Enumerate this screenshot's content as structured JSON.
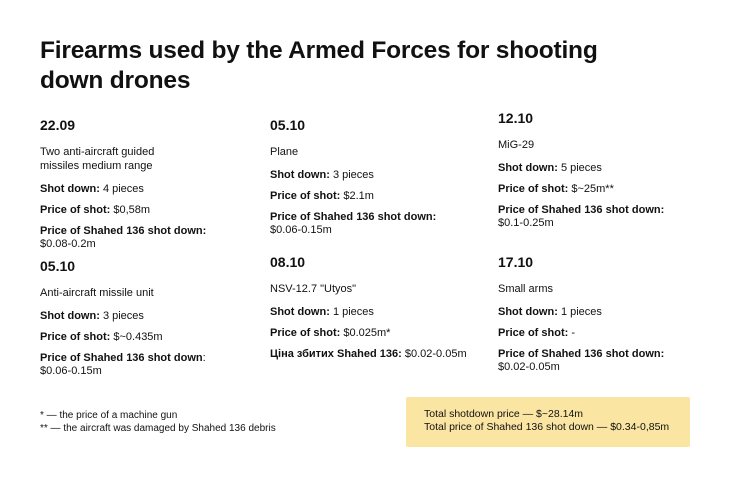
{
  "title": "Firearms used by the Armed Forces for shooting down drones",
  "cards": [
    {
      "date": "22.09",
      "name": "Two anti-aircraft guided missiles medium range",
      "shot_label": "Shot down:",
      "shot_value": "4 pieces",
      "price_label": "Price of shot:",
      "price_value": "$0,58m",
      "shahed_label": "Price of Shahed 136 shot down:",
      "shahed_value": "$0.08-0.2m"
    },
    {
      "date": "05.10",
      "name": "Plane",
      "shot_label": "Shot down:",
      "shot_value": "3 pieces",
      "price_label": "Price of shot:",
      "price_value": "$2.1m",
      "shahed_label": "Price of Shahed 136 shot down:",
      "shahed_value": "$0.06-0.15m"
    },
    {
      "date": "12.10",
      "name": "MiG-29",
      "shot_label": "Shot down:",
      "shot_value": "5 pieces",
      "price_label": "Price of shot:",
      "price_value": "$~25m**",
      "shahed_label": "Price of Shahed 136 shot down:",
      "shahed_value": "$0.1-0.25m"
    },
    {
      "date": "05.10",
      "name": "Anti-aircraft missile unit",
      "shot_label": "Shot down:",
      "shot_value": "3 pieces",
      "price_label": "Price of shot:",
      "price_value": "$~0.435m",
      "shahed_label": "Price of Shahed 136 shot down",
      "shahed_value": ":\n$0.06-0.15m"
    },
    {
      "date": "08.10",
      "name": "NSV-12.7 \"Utyos\"",
      "shot_label": "Shot down:",
      "shot_value": "1 pieces",
      "price_label": "Price of shot:",
      "price_value": "$0.025m*",
      "shahed_label": "Ціна збитих Shahed 136:",
      "shahed_value": "$0.02-0.05m"
    },
    {
      "date": "17.10",
      "name": "Small arms",
      "shot_label": "Shot down:",
      "shot_value": "1 pieces",
      "price_label": "Price of shot:",
      "price_value": "-",
      "shahed_label": "Price of Shahed 136 shot down:",
      "shahed_value": "$0.02-0.05m"
    }
  ],
  "footnotes": [
    "* — the price of a machine gun",
    "** — the aircraft was damaged by Shahed 136 debris"
  ],
  "totals": [
    "Total shotdown price — $~28.14m",
    "Total price of Shahed 136 shot down — $0.34-0,85m"
  ],
  "colors": {
    "totals_background": "#fbe5a3",
    "text": "#111111"
  }
}
